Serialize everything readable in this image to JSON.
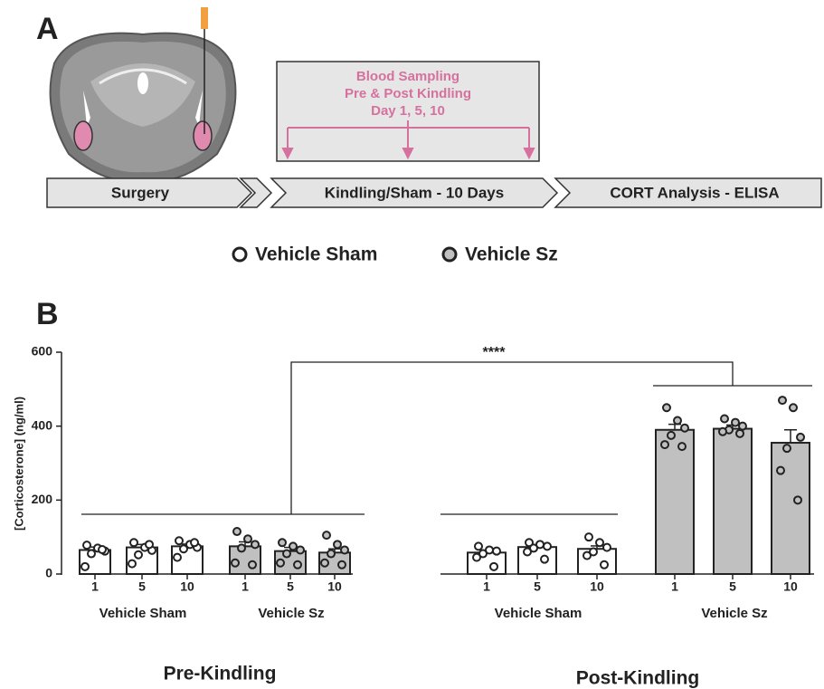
{
  "panel_a": {
    "label": "A",
    "box_lines": [
      "Blood Sampling",
      "Pre & Post Kindling",
      "Day 1, 5, 10"
    ],
    "steps": [
      "Surgery",
      "Kindling/Sham - 10 Days",
      "CORT Analysis - ELISA"
    ]
  },
  "chart_data": {
    "type": "bar",
    "label": "B",
    "ylabel": "[Corticosterone] (ng/ml)",
    "ylim": [
      0,
      600
    ],
    "yticks": [
      0,
      200,
      400,
      600
    ],
    "annotation": "****",
    "categories": [
      "1",
      "5",
      "10"
    ],
    "series": [
      {
        "name": "Vehicle Sham",
        "color": "#ffffff"
      },
      {
        "name": "Vehicle Sz",
        "color": "#c0c0c0"
      }
    ],
    "panels": [
      {
        "name": "Pre-Kindling",
        "groups": [
          {
            "name": "Vehicle Sham",
            "values": [
              65,
              72,
              75
            ],
            "errors": [
              8,
              8,
              6
            ],
            "points": [
              [
                78,
                70,
                62,
                55,
                20,
                66
              ],
              [
                85,
                72,
                64,
                52,
                28,
                80
              ],
              [
                90,
                80,
                72,
                68,
                45,
                85
              ]
            ]
          },
          {
            "name": "Vehicle Sz",
            "values": [
              75,
              62,
              58
            ],
            "errors": [
              12,
              10,
              10
            ],
            "points": [
              [
                115,
                95,
                80,
                70,
                30,
                25
              ],
              [
                85,
                75,
                65,
                55,
                30,
                25
              ],
              [
                105,
                80,
                65,
                55,
                30,
                25
              ]
            ]
          }
        ]
      },
      {
        "name": "Post-Kindling",
        "groups": [
          {
            "name": "Vehicle Sham",
            "values": [
              58,
              73,
              68
            ],
            "errors": [
              6,
              5,
              8
            ],
            "points": [
              [
                75,
                65,
                62,
                55,
                45,
                20
              ],
              [
                85,
                80,
                75,
                70,
                60,
                40
              ],
              [
                100,
                85,
                72,
                60,
                50,
                25
              ]
            ]
          },
          {
            "name": "Vehicle Sz",
            "values": [
              390,
              393,
              355
            ],
            "errors": [
              15,
              10,
              35
            ],
            "points": [
              [
                450,
                415,
                395,
                375,
                350,
                345
              ],
              [
                420,
                410,
                400,
                390,
                385,
                380
              ],
              [
                470,
                450,
                370,
                340,
                280,
                200
              ]
            ]
          }
        ]
      }
    ]
  }
}
